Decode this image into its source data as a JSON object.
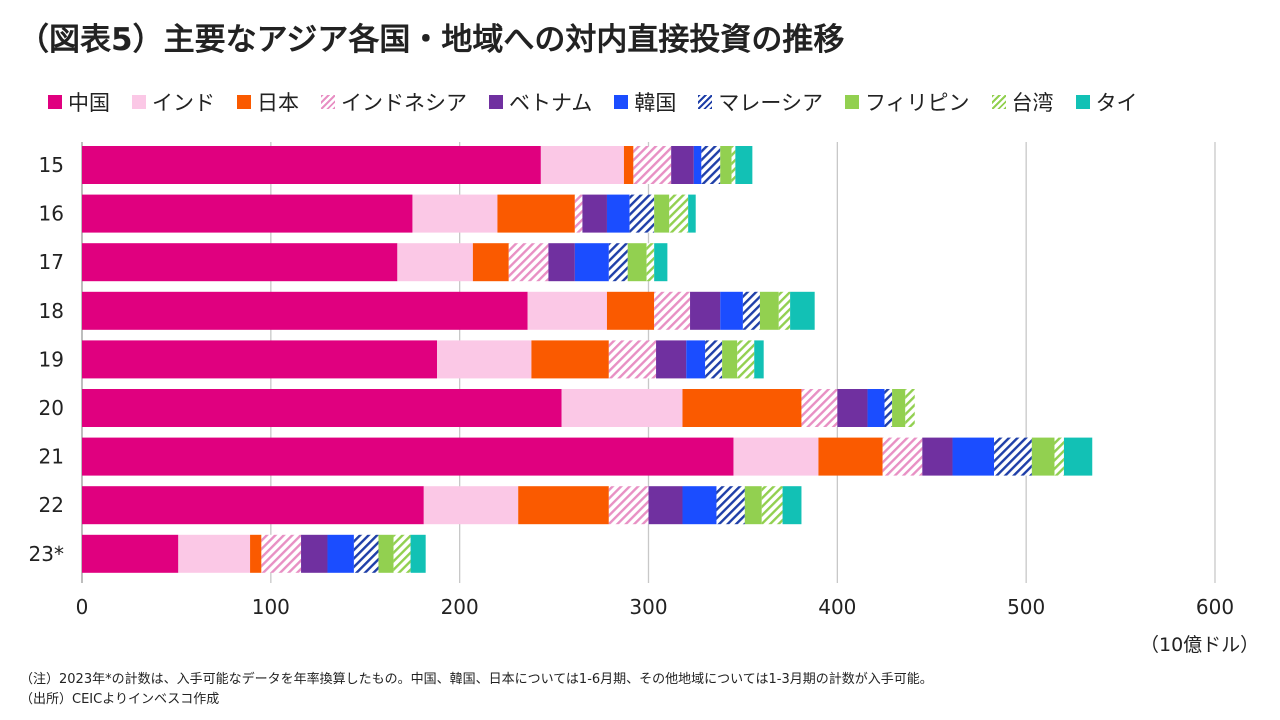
{
  "title": "（図表5）主要なアジア各国・地域への対内直接投資の推移",
  "unit": "（10億ドル）",
  "notes": {
    "note": "（注）2023年*の計数は、入手可能なデータを年率換算したもの。中国、韓国、日本については1-6月期、その他地域については1-3月期の計数が入手可能。",
    "source": "（出所）CEICよりインベスコ作成"
  },
  "chart_data": {
    "type": "bar",
    "orientation": "horizontal",
    "stacked": true,
    "categories": [
      "15",
      "16",
      "17",
      "18",
      "19",
      "20",
      "21",
      "22",
      "23*"
    ],
    "xlim": [
      0,
      600
    ],
    "xticks": [
      0,
      100,
      200,
      300,
      400,
      500,
      600
    ],
    "grid": true,
    "legend_position": "top",
    "series": [
      {
        "name": "中国",
        "color": "#e0007f",
        "pattern": "solid",
        "values": [
          243,
          175,
          167,
          236,
          188,
          254,
          345,
          181,
          51
        ]
      },
      {
        "name": "インド",
        "color": "#fbc8e6",
        "pattern": "solid",
        "values": [
          44,
          45,
          40,
          42,
          50,
          64,
          45,
          50,
          38
        ]
      },
      {
        "name": "日本",
        "color": "#fa5a00",
        "pattern": "solid",
        "values": [
          5,
          41,
          19,
          25,
          41,
          63,
          34,
          48,
          6
        ]
      },
      {
        "name": "インドネシア",
        "color": "#e890c4",
        "pattern": "hatch",
        "values": [
          20,
          4,
          21,
          19,
          25,
          19,
          21,
          21,
          21
        ]
      },
      {
        "name": "ベトナム",
        "color": "#7030a0",
        "pattern": "solid",
        "values": [
          12,
          13,
          14,
          16,
          16,
          16,
          16,
          18,
          14
        ]
      },
      {
        "name": "韓国",
        "color": "#1b4dff",
        "pattern": "solid",
        "values": [
          4,
          12,
          18,
          12,
          10,
          9,
          22,
          18,
          14
        ]
      },
      {
        "name": "マレーシア",
        "color": "#1f3fa8",
        "pattern": "hatch",
        "values": [
          10,
          13,
          10,
          9,
          9,
          4,
          20,
          15,
          13
        ]
      },
      {
        "name": "フィリピン",
        "color": "#92d050",
        "pattern": "solid",
        "values": [
          6,
          8,
          10,
          10,
          8,
          7,
          12,
          9,
          8
        ]
      },
      {
        "name": "台湾",
        "color": "#92d050",
        "pattern": "hatch",
        "values": [
          2,
          10,
          4,
          6,
          9,
          5,
          5,
          11,
          9
        ]
      },
      {
        "name": "タイ",
        "color": "#12c1b5",
        "pattern": "solid",
        "values": [
          9,
          4,
          7,
          13,
          5,
          0,
          15,
          10,
          8
        ]
      }
    ]
  }
}
